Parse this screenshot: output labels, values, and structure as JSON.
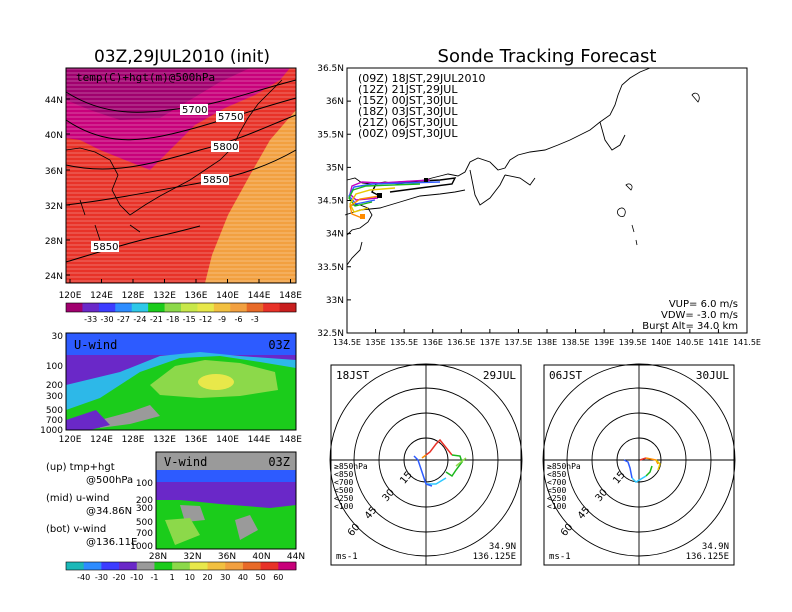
{
  "header": {
    "left_title": "03Z,29JUL2010 (init)",
    "right_title": "Sonde Tracking Forecast"
  },
  "colors": {
    "magenta": "#c8007a",
    "red": "#e83228",
    "orange": "#ff7a00",
    "lightorange": "#f2a040",
    "purple": "#6a28c8",
    "blue": "#2d5bff",
    "green": "#1bcc1b",
    "lightgreen": "#8cd94a",
    "yellow": "#e8e84a",
    "gray": "#9a9a9a"
  },
  "chart_data": [
    {
      "id": "map500",
      "type": "heatmap",
      "title": "temp(C)+hgt(m)@500hPa",
      "x_ticks": [
        "120E",
        "124E",
        "128E",
        "132E",
        "136E",
        "140E",
        "144E",
        "148E"
      ],
      "y_ticks": [
        "24N",
        "28N",
        "32N",
        "36N",
        "40N",
        "44N"
      ],
      "contour_labels": [
        "5700",
        "5750",
        "5800",
        "5850",
        "5850"
      ],
      "colorbar_ticks": [
        "-33",
        "-30",
        "-27",
        "-24",
        "-21",
        "-18",
        "-15",
        "-12",
        "-9",
        "-6",
        "-3"
      ]
    },
    {
      "id": "uwind",
      "type": "heatmap",
      "title": "U-wind",
      "time": "03Z",
      "y_ticks": [
        "30",
        "100",
        "200",
        "300",
        "500",
        "700",
        "1000"
      ],
      "x_ticks": [
        "120E",
        "124E",
        "128E",
        "132E",
        "136E",
        "140E",
        "144E",
        "148E"
      ]
    },
    {
      "id": "vwind",
      "type": "heatmap",
      "title": "V-wind",
      "time": "03Z",
      "y_ticks": [
        "100",
        "200",
        "300",
        "500",
        "700",
        "1000"
      ],
      "x_ticks": [
        "28N",
        "32N",
        "36N",
        "40N",
        "44N"
      ],
      "colorbar_ticks": [
        "-40",
        "-30",
        "-20",
        "-10",
        "-1",
        "1",
        "10",
        "20",
        "30",
        "40",
        "50",
        "60"
      ]
    },
    {
      "id": "track",
      "type": "line",
      "xlim": [
        134.5,
        141.5
      ],
      "ylim": [
        32.5,
        36.5
      ],
      "x_ticks": [
        "134.5E",
        "135E",
        "135.5E",
        "136E",
        "136.5E",
        "137E",
        "137.5E",
        "138E",
        "138.5E",
        "139E",
        "139.5E",
        "140E",
        "140.5E",
        "141E",
        "141.5E"
      ],
      "y_ticks": [
        "36.5N",
        "36N",
        "35.5N",
        "35N",
        "34.5N",
        "34N",
        "33.5N",
        "33N",
        "32.5N"
      ],
      "legend": [
        {
          "text": "(09Z)  18JST,29JUL2010",
          "color": "#000000"
        },
        {
          "text": "(12Z)  21JST,29JUL",
          "color": "#c000c0"
        },
        {
          "text": "(15Z)  00JST,30JUL",
          "color": "#2d5bff"
        },
        {
          "text": "(18Z)  03JST,30JUL",
          "color": "#1bb81b"
        },
        {
          "text": "(21Z)  06JST,30JUL",
          "color": "#e8c800"
        },
        {
          "text": "(00Z)  09JST,30JUL",
          "color": "#ff8c00"
        }
      ],
      "params": [
        "VUP=  6.0  m/s",
        "VDW=  -3.0  m/s",
        "Burst Alt=  34.0  km"
      ]
    },
    {
      "id": "hodo1",
      "type": "line",
      "time_label": "18JST",
      "date_label": "29JUL",
      "ring_labels": [
        "15",
        "30",
        "45",
        "60"
      ],
      "levels": [
        "≥850hPa",
        "<850",
        "<700",
        "<500",
        "<250",
        "<100"
      ],
      "level_colors": [
        "#e83228",
        "#ff8c00",
        "#e8c800",
        "#1bb81b",
        "#2dc8ff",
        "#2d5bff"
      ],
      "unit": "ms-1",
      "loc_lat": "34.9N",
      "loc_lon": "136.125E"
    },
    {
      "id": "hodo2",
      "type": "line",
      "time_label": "06JST",
      "date_label": "30JUL",
      "ring_labels": [
        "15",
        "30",
        "45",
        "60"
      ],
      "levels": [
        "≥850hPa",
        "<850",
        "<700",
        "<500",
        "<250",
        "<100"
      ],
      "level_colors": [
        "#e83228",
        "#ff8c00",
        "#e8c800",
        "#1bb81b",
        "#2dc8ff",
        "#2d5bff"
      ],
      "unit": "ms-1",
      "loc_lat": "34.9N",
      "loc_lon": "136.125E"
    }
  ],
  "notes": {
    "up": "(up) tmp+hgt",
    "up2": "@500hPa",
    "mid": "(mid) u-wind",
    "mid2": "@34.86N",
    "bot": "(bot) v-wind",
    "bot2": "@136.11E"
  }
}
